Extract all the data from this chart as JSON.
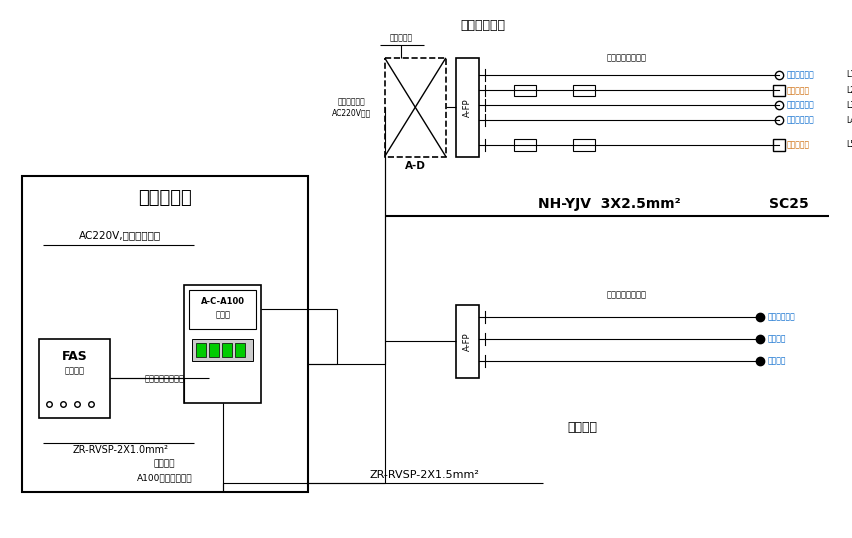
{
  "bg_color": "#ffffff",
  "green_color": "#00cc00",
  "blue_color": "#0066cc",
  "orange_color": "#cc6600",
  "room1_label": "办公楼配电室",
  "room2_label": "维修间房",
  "room3_label": "消防控制室",
  "cable_label1": "NH-YJV  3X2.5mm²",
  "cable_label2": "SC25",
  "cable_label3": "ZR-RVSP-2X1.5mm²",
  "cable_label4": "ZR-RVSP-2X1.0mm²",
  "signal_label": "报警位置信息输入",
  "ac220v_power": "AC220V,消防专用电源",
  "ac220v_input": "消防电源转换\nAC220V输入",
  "fire_breaker": "火灾断路器",
  "bottom_label1": "屏蔽兑光",
  "bottom_label2": "A100分布式控制器",
  "fas_top": "FAS",
  "fas_mid": "消火主机",
  "controller_top": "A-C-A100",
  "controller_bot": "控制器",
  "top_section_label": "火灾应急照明回路",
  "bot_section_label": "火灾应急照明回路",
  "lamp_top_1": "火灾应急照明",
  "lamp_top_2": "疏散指示灯",
  "lamp_top_3": "火灾应急照明",
  "lamp_top_4": "火灾应急照明",
  "lamp_top_5": "疏散指示灯",
  "lamp_bot_1": "火灾应急照明",
  "lamp_bot_2": "应急照明",
  "lamp_bot_3": "应急照明"
}
